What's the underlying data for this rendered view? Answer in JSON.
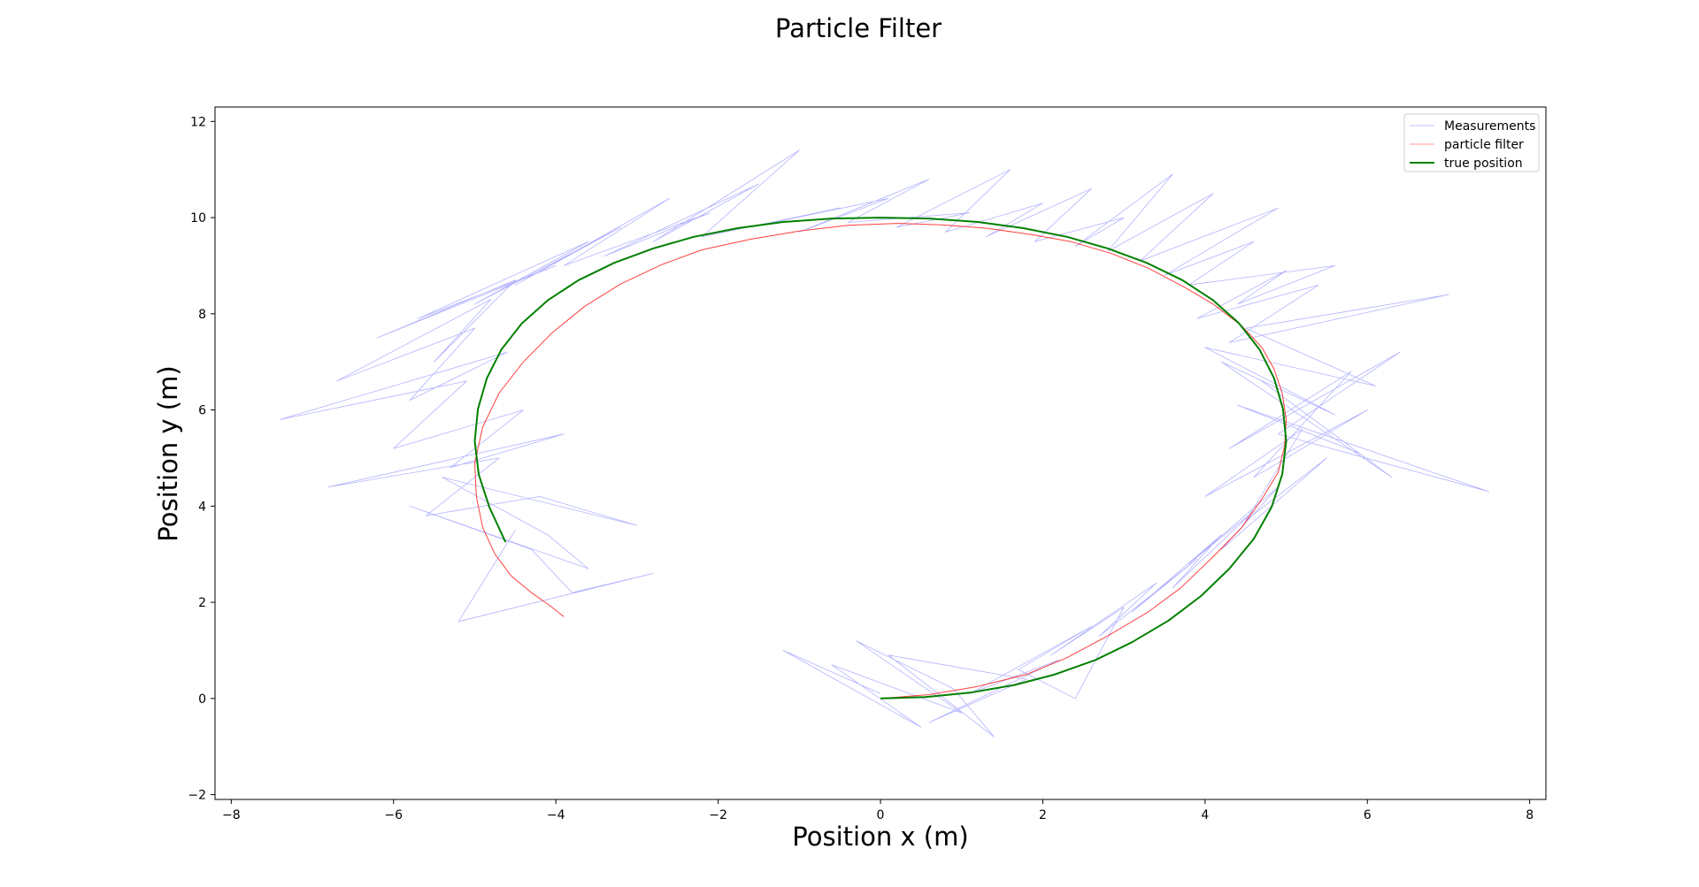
{
  "chart_data": {
    "type": "line",
    "title": "Particle Filter",
    "xlabel": "Position x (m)",
    "ylabel": "Position y (m)",
    "xlim": [
      -8.2,
      8.2
    ],
    "ylim": [
      -2.1,
      12.3
    ],
    "xticks": [
      -8,
      -6,
      -4,
      -2,
      0,
      2,
      4,
      6,
      8
    ],
    "yticks": [
      -2,
      0,
      2,
      4,
      6,
      8,
      10,
      12
    ],
    "xtick_labels": [
      "−8",
      "−6",
      "−4",
      "−2",
      "0",
      "2",
      "4",
      "6",
      "8"
    ],
    "ytick_labels": [
      "−2",
      "0",
      "2",
      "4",
      "6",
      "8",
      "10",
      "12"
    ],
    "grid": false,
    "legend_position": "top-right",
    "series": [
      {
        "name": "Measurements",
        "color": "#0000ff",
        "style": "thin-line",
        "x": [
          0.0,
          -1.2,
          0.5,
          -0.6,
          1.0,
          -0.3,
          0.9,
          1.4,
          0.1,
          1.8,
          0.6,
          2.2,
          1.1,
          2.6,
          1.7,
          2.4,
          3.0,
          2.1,
          3.4,
          2.7,
          3.9,
          3.1,
          4.2,
          3.6,
          4.6,
          3.8,
          4.9,
          4.2,
          5.5,
          4.5,
          5.2,
          4.0,
          6.0,
          4.6,
          5.8,
          4.3,
          6.4,
          4.9,
          7.5,
          4.4,
          5.9,
          4.7,
          6.3,
          4.2,
          5.6,
          4.0,
          6.1,
          4.5,
          7.0,
          4.3,
          5.4,
          3.9,
          5.0,
          4.4,
          5.6,
          3.8,
          4.6,
          3.5,
          4.9,
          3.2,
          4.1,
          2.8,
          3.6,
          2.4,
          3.0,
          1.9,
          2.6,
          1.3,
          2.0,
          0.8,
          1.6,
          0.2,
          1.1,
          -0.4,
          0.6,
          -1.0,
          0.1,
          -1.6,
          -0.5,
          -2.2,
          -1.0,
          -2.8,
          -1.5,
          -3.4,
          -2.1,
          -3.9,
          -2.6,
          -4.5,
          -3.2,
          -5.0,
          -3.6,
          -5.7,
          -4.0,
          -6.2,
          -4.5,
          -5.5,
          -4.8,
          -6.7,
          -5.0,
          -5.8,
          -4.6,
          -7.4,
          -5.1,
          -6.0,
          -4.4,
          -5.3,
          -3.9,
          -6.8,
          -4.7,
          -5.6,
          -4.2,
          -3.0,
          -5.4,
          -4.1,
          -3.6,
          -5.8,
          -4.3,
          -3.8,
          -2.8,
          -5.2,
          -4.5
        ],
        "y": [
          0.1,
          1.0,
          -0.6,
          0.7,
          -0.3,
          1.2,
          0.2,
          -0.8,
          0.9,
          0.4,
          -0.5,
          0.8,
          0.1,
          1.5,
          0.6,
          0.0,
          1.9,
          0.9,
          2.4,
          1.3,
          2.9,
          1.8,
          3.4,
          2.3,
          3.9,
          2.8,
          4.4,
          3.1,
          5.0,
          3.7,
          5.6,
          4.2,
          6.0,
          4.6,
          6.8,
          5.2,
          7.2,
          5.5,
          4.3,
          6.1,
          5.1,
          6.6,
          4.6,
          7.0,
          5.9,
          7.3,
          6.5,
          7.7,
          8.4,
          7.4,
          8.6,
          7.9,
          8.9,
          8.2,
          9.0,
          8.6,
          9.5,
          8.8,
          10.2,
          9.1,
          10.5,
          9.3,
          10.9,
          9.4,
          10.0,
          9.5,
          10.6,
          9.6,
          10.3,
          9.7,
          11.0,
          9.8,
          10.1,
          9.9,
          10.8,
          9.7,
          10.4,
          9.8,
          10.2,
          9.6,
          11.4,
          9.5,
          10.7,
          9.2,
          10.1,
          9.0,
          10.4,
          8.6,
          9.8,
          8.2,
          9.5,
          7.9,
          9.0,
          7.5,
          8.7,
          7.0,
          8.3,
          6.6,
          7.7,
          6.2,
          7.2,
          5.8,
          6.6,
          5.2,
          6.0,
          4.8,
          5.5,
          4.4,
          5.0,
          3.8,
          4.2,
          3.6,
          4.6,
          3.4,
          2.7,
          4.0,
          3.1,
          2.2,
          2.6,
          1.6,
          3.5
        ],
        "values": [
          0.1,
          1.0,
          -0.6,
          0.7,
          -0.3,
          1.2,
          0.2,
          -0.8,
          0.9,
          0.4,
          -0.5,
          0.8,
          0.1,
          1.5,
          0.6,
          0.0,
          1.9,
          0.9,
          2.4,
          1.3,
          2.9,
          1.8,
          3.4,
          2.3,
          3.9,
          2.8,
          4.4,
          3.1,
          5.0,
          3.7,
          5.6,
          4.2,
          6.0,
          4.6,
          6.8,
          5.2,
          7.2,
          5.5,
          4.3,
          6.1,
          5.1,
          6.6,
          4.6,
          7.0,
          5.9,
          7.3,
          6.5,
          7.7,
          8.4,
          7.4,
          8.6,
          7.9,
          8.9,
          8.2,
          9.0,
          8.6,
          9.5,
          8.8,
          10.2,
          9.1,
          10.5,
          9.3,
          10.9,
          9.4,
          10.0,
          9.5,
          10.6,
          9.6,
          10.3,
          9.7,
          11.0,
          9.8,
          10.1,
          9.9,
          10.8,
          9.7,
          10.4,
          9.8,
          10.2,
          9.6,
          11.4,
          9.5,
          10.7,
          9.2,
          10.1,
          9.0,
          10.4,
          8.6,
          9.8,
          8.2,
          9.5,
          7.9,
          9.0,
          7.5,
          8.7,
          7.0,
          8.3,
          6.6,
          7.7,
          6.2,
          7.2,
          5.8,
          6.6,
          5.2,
          6.0,
          4.8,
          5.5,
          4.4,
          5.0,
          3.8,
          4.2,
          3.6,
          4.6,
          3.4,
          2.7,
          4.0,
          3.1,
          2.2,
          2.6,
          1.6,
          3.5
        ]
      },
      {
        "name": "particle filter",
        "color": "#ff0000",
        "style": "thin-line",
        "x": [
          0.0,
          0.6,
          1.2,
          1.8,
          2.3,
          2.8,
          3.3,
          3.7,
          4.1,
          4.45,
          4.7,
          4.9,
          4.98,
          5.0,
          4.95,
          4.85,
          4.7,
          4.45,
          4.1,
          3.75,
          3.3,
          2.85,
          2.35,
          1.85,
          1.3,
          0.75,
          0.2,
          -0.4,
          -1.0,
          -1.6,
          -2.2,
          -2.7,
          -3.2,
          -3.65,
          -4.05,
          -4.4,
          -4.7,
          -4.9,
          -5.0,
          -4.98,
          -4.9,
          -4.75,
          -4.55,
          -4.3,
          -4.05,
          -3.9
        ],
        "y": [
          0.0,
          0.08,
          0.25,
          0.5,
          0.85,
          1.3,
          1.8,
          2.3,
          2.95,
          3.55,
          4.15,
          4.7,
          5.25,
          5.8,
          6.35,
          6.85,
          7.3,
          7.75,
          8.2,
          8.55,
          8.95,
          9.25,
          9.5,
          9.65,
          9.78,
          9.85,
          9.88,
          9.84,
          9.72,
          9.55,
          9.33,
          9.02,
          8.62,
          8.15,
          7.6,
          7.0,
          6.35,
          5.65,
          4.9,
          4.2,
          3.55,
          3.0,
          2.55,
          2.2,
          1.9,
          1.7
        ],
        "values": [
          0.0,
          0.08,
          0.25,
          0.5,
          0.85,
          1.3,
          1.8,
          2.3,
          2.95,
          3.55,
          4.15,
          4.7,
          5.25,
          5.8,
          6.35,
          6.85,
          7.3,
          7.75,
          8.2,
          8.55,
          8.95,
          9.25,
          9.5,
          9.65,
          9.78,
          9.85,
          9.88,
          9.84,
          9.72,
          9.55,
          9.33,
          9.02,
          8.62,
          8.15,
          7.6,
          7.0,
          6.35,
          5.65,
          4.9,
          4.2,
          3.55,
          3.0,
          2.55,
          2.2,
          1.9,
          1.7
        ]
      },
      {
        "name": "true position",
        "color": "#008000",
        "style": "thick-line",
        "x": [
          0.0,
          0.55,
          1.1,
          1.65,
          2.15,
          2.65,
          3.1,
          3.55,
          3.95,
          4.3,
          4.6,
          4.82,
          4.95,
          5.0,
          4.96,
          4.85,
          4.67,
          4.42,
          4.1,
          3.72,
          3.28,
          2.8,
          2.3,
          1.76,
          1.2,
          0.6,
          0.0,
          -0.6,
          -1.2,
          -1.76,
          -2.3,
          -2.8,
          -3.28,
          -3.72,
          -4.1,
          -4.42,
          -4.67,
          -4.85,
          -4.96,
          -5.0,
          -4.95,
          -4.82,
          -4.62
        ],
        "y": [
          0.0,
          0.03,
          0.12,
          0.28,
          0.5,
          0.8,
          1.17,
          1.62,
          2.13,
          2.7,
          3.32,
          3.98,
          4.66,
          5.35,
          6.02,
          6.66,
          7.26,
          7.8,
          8.28,
          8.7,
          9.06,
          9.36,
          9.6,
          9.78,
          9.91,
          9.98,
          10.0,
          9.98,
          9.91,
          9.78,
          9.6,
          9.36,
          9.06,
          8.7,
          8.28,
          7.8,
          7.26,
          6.66,
          6.02,
          5.35,
          4.66,
          3.98,
          3.25
        ],
        "values": [
          0.0,
          0.03,
          0.12,
          0.28,
          0.5,
          0.8,
          1.17,
          1.62,
          2.13,
          2.7,
          3.32,
          3.98,
          4.66,
          5.35,
          6.02,
          6.66,
          7.26,
          7.8,
          8.28,
          8.7,
          9.06,
          9.36,
          9.6,
          9.78,
          9.91,
          9.98,
          10.0,
          9.98,
          9.91,
          9.78,
          9.6,
          9.36,
          9.06,
          8.7,
          8.28,
          7.8,
          7.26,
          6.66,
          6.02,
          5.35,
          4.66,
          3.98,
          3.25
        ]
      }
    ]
  }
}
